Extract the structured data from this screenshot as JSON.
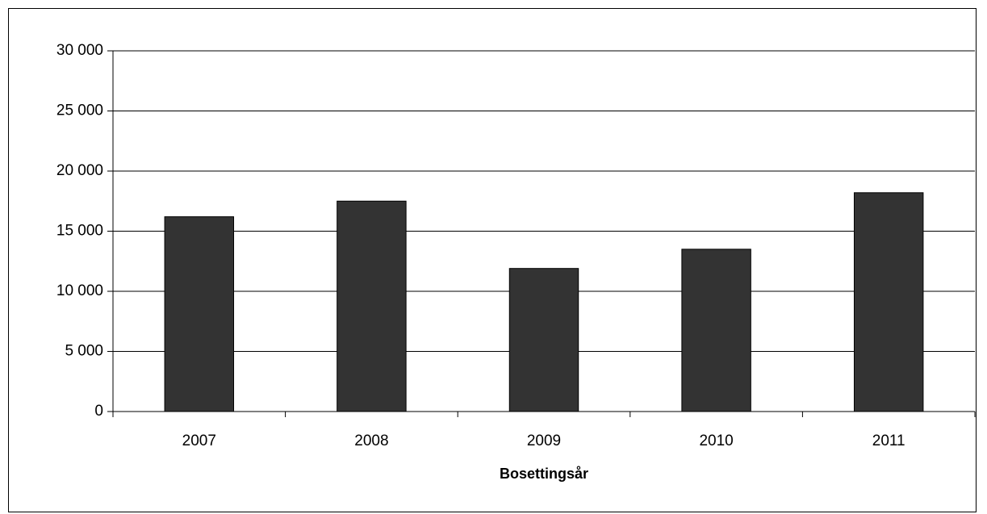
{
  "chart_data": {
    "type": "bar",
    "x_label": "Bosettingsår",
    "categories": [
      "2007",
      "2008",
      "2009",
      "2010",
      "2011"
    ],
    "values": [
      16200,
      17500,
      11900,
      13500,
      18200
    ],
    "color": "#333333",
    "ylim": [
      0,
      30000
    ],
    "yticks": [
      0,
      {
        "value": 5000,
        "label": "5 000"
      },
      {
        "value": 10000,
        "label": "10 000"
      },
      {
        "value": 15000,
        "label": "15 000"
      },
      {
        "value": 20000,
        "label": "20 000"
      },
      {
        "value": 25000,
        "label": "25 000"
      },
      {
        "value": 30000,
        "label": "30 000"
      }
    ],
    "grid": true
  }
}
